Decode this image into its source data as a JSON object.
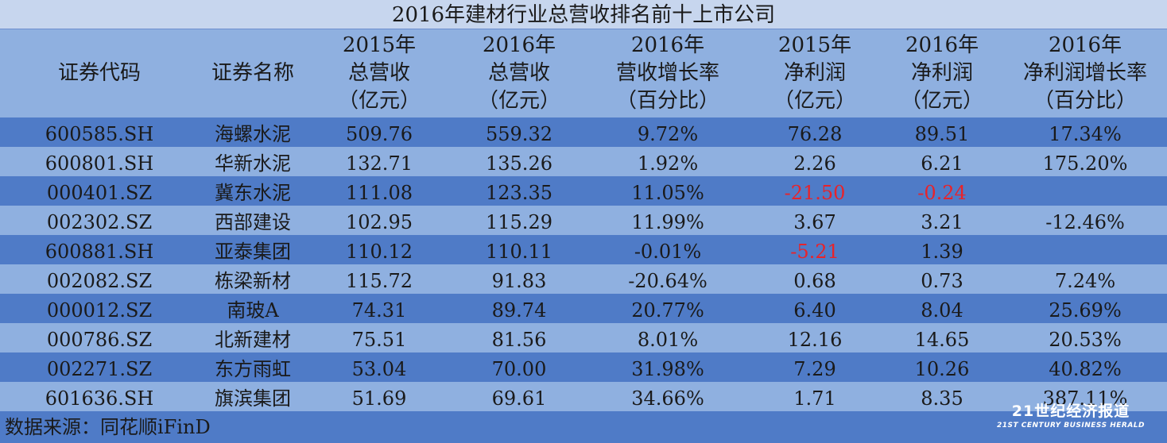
{
  "title": "2016年建材行业总营收排名前十上市公司",
  "columns": [
    [
      "证券代码"
    ],
    [
      "证券名称"
    ],
    [
      "2015年",
      "总营收",
      "（亿元）"
    ],
    [
      "2016年",
      "总营收",
      "（亿元）"
    ],
    [
      "2016年",
      "营收增长率",
      "（百分比）"
    ],
    [
      "2015年",
      "净利润",
      "（亿元）"
    ],
    [
      "2016年",
      "净利润",
      "（亿元）"
    ],
    [
      "2016年",
      "净利润增长率",
      "（百分比）"
    ]
  ],
  "rows": [
    [
      "600585.SH",
      "海螺水泥",
      "509.76",
      "559.32",
      "9.72%",
      "76.28",
      "89.51",
      "17.34%"
    ],
    [
      "600801.SH",
      "华新水泥",
      "132.71",
      "135.26",
      "1.92%",
      "2.26",
      "6.21",
      "175.20%"
    ],
    [
      "000401.SZ",
      "冀东水泥",
      "111.08",
      "123.35",
      "11.05%",
      "-21.50",
      "-0.24",
      ""
    ],
    [
      "002302.SZ",
      "西部建设",
      "102.95",
      "115.29",
      "11.99%",
      "3.67",
      "3.21",
      "-12.46%"
    ],
    [
      "600881.SH",
      "亚泰集团",
      "110.12",
      "110.11",
      "-0.01%",
      "-5.21",
      "1.39",
      ""
    ],
    [
      "002082.SZ",
      "栋梁新材",
      "115.72",
      "91.83",
      "-20.64%",
      "0.68",
      "0.73",
      "7.24%"
    ],
    [
      "000012.SZ",
      "南玻A",
      "74.31",
      "89.74",
      "20.77%",
      "6.40",
      "8.04",
      "25.69%"
    ],
    [
      "000786.SZ",
      "北新建材",
      "75.51",
      "81.56",
      "8.01%",
      "12.16",
      "14.65",
      "20.53%"
    ],
    [
      "002271.SZ",
      "东方雨虹",
      "53.04",
      "70.00",
      "31.98%",
      "7.29",
      "10.26",
      "40.82%"
    ],
    [
      "601636.SH",
      "旗滨集团",
      "51.69",
      "69.61",
      "34.66%",
      "1.71",
      "8.35",
      "387.11%"
    ]
  ],
  "negative_cells": [
    [
      2,
      5
    ],
    [
      2,
      6
    ],
    [
      4,
      5
    ]
  ],
  "source": "数据来源：同花顺iFinD",
  "logo": {
    "name": "21世纪经济报道",
    "subtitle": "21ST CENTURY BUSINESS HERALD"
  },
  "colors": {
    "dark_row": "#4f7bc7",
    "light_row": "#8fb0e0",
    "title_bg": "#c7d6ee",
    "negative": "#e8232a"
  }
}
